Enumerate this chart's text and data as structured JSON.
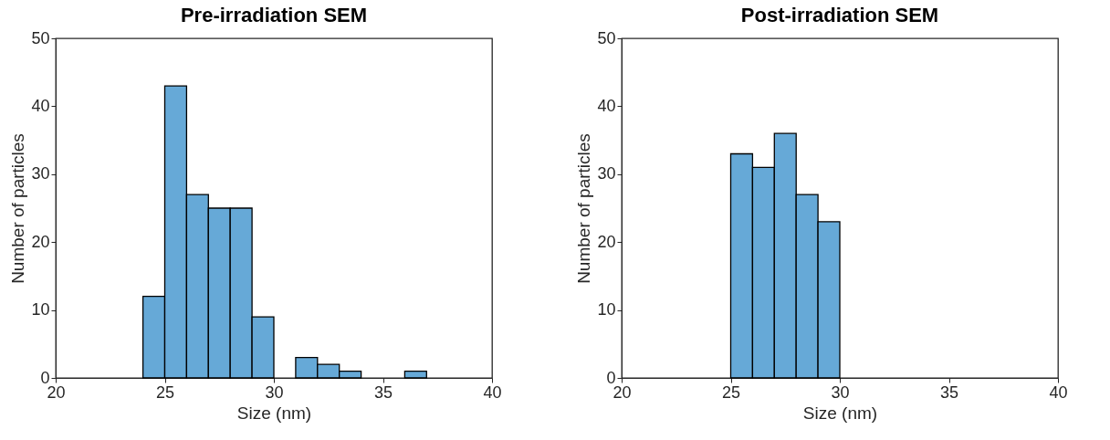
{
  "chart_data": [
    {
      "type": "histogram",
      "title": "Pre-irradiation SEM",
      "xlabel": "Size (nm)",
      "ylabel": "Number of particles",
      "bins": [
        24,
        25,
        26,
        27,
        28,
        29,
        30,
        31,
        32,
        33,
        34,
        35,
        36,
        37
      ],
      "values": [
        12,
        43,
        27,
        25,
        25,
        9,
        0,
        3,
        2,
        1,
        0,
        0,
        1
      ],
      "color": "#66a9d7",
      "xlim": [
        20,
        40
      ],
      "xticks": [
        20,
        25,
        30,
        35,
        40
      ],
      "ylim": [
        0,
        50
      ],
      "yticks": [
        0,
        10,
        20,
        30,
        40,
        50
      ]
    },
    {
      "type": "histogram",
      "title": "Post-irradiation SEM",
      "xlabel": "Size (nm)",
      "ylabel": "Number of particles",
      "bins": [
        25,
        26,
        27,
        28,
        29,
        30
      ],
      "values": [
        33,
        31,
        36,
        27,
        23
      ],
      "color": "#66a9d7",
      "xlim": [
        20,
        40
      ],
      "xticks": [
        20,
        25,
        30,
        35,
        40
      ],
      "ylim": [
        0,
        50
      ],
      "yticks": [
        0,
        10,
        20,
        30,
        40,
        50
      ]
    }
  ]
}
